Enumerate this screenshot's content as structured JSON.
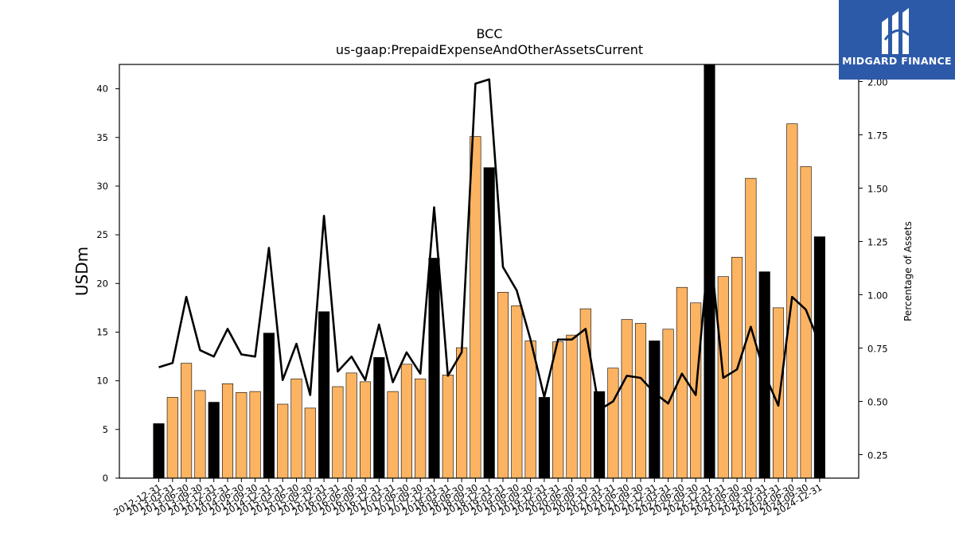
{
  "logo": {
    "brand_text": "MIDGARD FINANCE",
    "icon": "midgard-logo-icon",
    "background": "#2d5aa8"
  },
  "chart_data": {
    "type": "bar",
    "title": "BCC",
    "subtitle": "us-gaap:PrepaidExpenseAndOtherAssetsCurrent",
    "ylabel": "USDm",
    "y2label": "Percentage of Assets",
    "ylim": [
      0,
      42.5
    ],
    "y2lim": [
      0.14,
      2.08
    ],
    "yticks": [
      0,
      5,
      10,
      15,
      20,
      25,
      30,
      35,
      40
    ],
    "y2ticks": [
      "0.25",
      "0.50",
      "0.75",
      "1.00",
      "1.25",
      "1.50",
      "1.75",
      "2.00"
    ],
    "grid": false,
    "legend": "none",
    "colors": {
      "quarter_bar": "#fdb462",
      "year_end_bar": "#000000",
      "line": "#000000"
    },
    "categories": [
      "2012-12-31",
      "2013-03-31",
      "2013-06-30",
      "2013-09-30",
      "2013-12-31",
      "2014-03-31",
      "2014-06-30",
      "2014-09-30",
      "2014-12-31",
      "2015-03-31",
      "2015-06-30",
      "2015-09-30",
      "2015-12-31",
      "2016-03-31",
      "2016-06-30",
      "2016-09-30",
      "2016-12-31",
      "2017-03-31",
      "2017-06-30",
      "2017-09-30",
      "2017-12-31",
      "2018-03-31",
      "2018-06-30",
      "2018-09-30",
      "2018-12-31",
      "2019-03-31",
      "2019-06-30",
      "2019-09-30",
      "2019-12-31",
      "2020-03-31",
      "2020-06-30",
      "2020-09-30",
      "2020-12-31",
      "2021-03-31",
      "2021-06-30",
      "2021-09-30",
      "2021-12-31",
      "2022-03-31",
      "2022-06-30",
      "2022-09-30",
      "2022-12-31",
      "2023-03-31",
      "2023-06-30",
      "2023-09-30",
      "2023-12-31",
      "2024-03-31",
      "2024-06-30",
      "2024-09-30",
      "2024-12-31"
    ],
    "series": [
      {
        "kind": "bar",
        "axis": "left",
        "values": [
          5.6,
          8.3,
          11.8,
          9.0,
          7.8,
          9.7,
          8.8,
          8.9,
          14.9,
          7.6,
          10.2,
          7.2,
          17.1,
          9.4,
          10.8,
          9.9,
          12.4,
          8.9,
          11.7,
          10.2,
          22.6,
          10.6,
          13.4,
          35.1,
          31.9,
          19.1,
          17.7,
          14.1,
          8.3,
          14.0,
          14.7,
          17.4,
          8.9,
          11.3,
          16.3,
          15.9,
          14.1,
          15.3,
          19.6,
          18.0,
          42.5,
          20.7,
          22.7,
          30.8,
          21.2,
          17.5,
          36.4,
          32.0,
          24.8
        ],
        "year_end": [
          true,
          false,
          false,
          false,
          true,
          false,
          false,
          false,
          true,
          false,
          false,
          false,
          true,
          false,
          false,
          false,
          true,
          false,
          false,
          false,
          true,
          false,
          false,
          false,
          true,
          false,
          false,
          false,
          true,
          false,
          false,
          false,
          true,
          false,
          false,
          false,
          true,
          false,
          false,
          false,
          true,
          false,
          false,
          false,
          true,
          false,
          false,
          false,
          true
        ]
      },
      {
        "kind": "line",
        "axis": "right",
        "values": [
          0.66,
          0.68,
          0.99,
          0.74,
          0.71,
          0.84,
          0.72,
          0.71,
          1.22,
          0.6,
          0.77,
          0.53,
          1.37,
          0.64,
          0.71,
          0.6,
          0.86,
          0.59,
          0.73,
          0.63,
          1.41,
          0.62,
          0.73,
          1.99,
          2.01,
          1.13,
          1.02,
          0.79,
          0.52,
          0.79,
          0.79,
          0.84,
          0.46,
          0.5,
          0.62,
          0.61,
          0.54,
          0.49,
          0.63,
          0.53,
          1.25,
          0.61,
          0.65,
          0.85,
          0.63,
          0.48,
          0.99,
          0.93,
          0.77
        ]
      }
    ]
  }
}
